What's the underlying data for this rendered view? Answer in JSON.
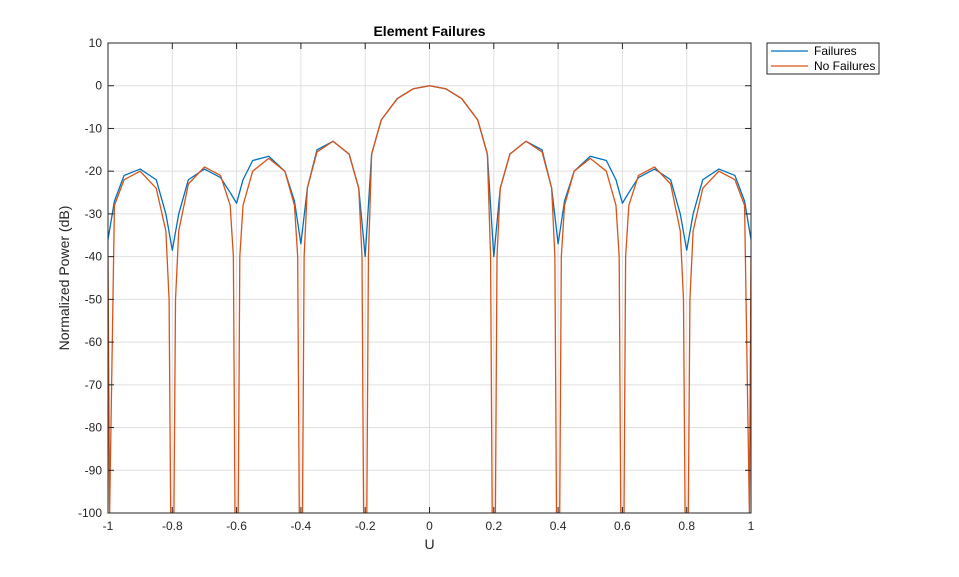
{
  "chart_data": {
    "type": "line",
    "title": "Element Failures",
    "xlabel": "U",
    "ylabel": "Normalized Power (dB)",
    "xlim": [
      -1,
      1
    ],
    "ylim": [
      -100,
      10
    ],
    "xticks": [
      -1,
      -0.8,
      -0.6,
      -0.4,
      -0.2,
      0,
      0.2,
      0.4,
      0.6,
      0.8,
      1
    ],
    "xtick_labels": [
      "-1",
      "-0.8",
      "-0.6",
      "-0.4",
      "-0.2",
      "0",
      "0.2",
      "0.4",
      "0.6",
      "0.8",
      "1"
    ],
    "yticks": [
      10,
      0,
      -10,
      -20,
      -30,
      -40,
      -50,
      -60,
      -70,
      -80,
      -90,
      -100
    ],
    "ytick_labels": [
      "10",
      "0",
      "-10",
      "-20",
      "-30",
      "-40",
      "-50",
      "-60",
      "-70",
      "-80",
      "-90",
      "-100"
    ],
    "grid": true,
    "legend_position": "outside-top-right",
    "series": [
      {
        "name": "Failures",
        "color": "#0072BD",
        "x": [
          -1,
          -0.98,
          -0.95,
          -0.9,
          -0.85,
          -0.82,
          -0.8,
          -0.78,
          -0.75,
          -0.7,
          -0.65,
          -0.62,
          -0.6,
          -0.58,
          -0.55,
          -0.5,
          -0.45,
          -0.42,
          -0.4,
          -0.38,
          -0.35,
          -0.3,
          -0.25,
          -0.22,
          -0.2,
          -0.18,
          -0.15,
          -0.1,
          -0.05,
          0,
          0.05,
          0.1,
          0.15,
          0.18,
          0.2,
          0.22,
          0.25,
          0.3,
          0.35,
          0.38,
          0.4,
          0.42,
          0.45,
          0.5,
          0.55,
          0.58,
          0.6,
          0.62,
          0.65,
          0.7,
          0.75,
          0.78,
          0.8,
          0.82,
          0.85,
          0.9,
          0.95,
          0.98,
          1
        ],
        "y": [
          -36,
          -27,
          -21,
          -19.5,
          -22,
          -30,
          -38.5,
          -30,
          -22,
          -19.5,
          -21.5,
          -25,
          -27.5,
          -22,
          -17.5,
          -16.5,
          -20,
          -27,
          -37,
          -24,
          -15,
          -13,
          -16,
          -24,
          -40,
          -16,
          -8,
          -3,
          -0.7,
          0,
          -0.7,
          -3,
          -8,
          -16,
          -40,
          -24,
          -16,
          -13,
          -15,
          -24,
          -37,
          -27,
          -20,
          -16.5,
          -17.5,
          -22,
          -27.5,
          -25,
          -21.5,
          -19.5,
          -22,
          -30,
          -38.5,
          -30,
          -22,
          -19.5,
          -21,
          -27,
          -36
        ]
      },
      {
        "name": "No Failures",
        "color": "#D95319",
        "x": [
          -1,
          -0.995,
          -0.98,
          -0.95,
          -0.9,
          -0.85,
          -0.82,
          -0.81,
          -0.805,
          -0.795,
          -0.79,
          -0.78,
          -0.75,
          -0.7,
          -0.65,
          -0.62,
          -0.61,
          -0.605,
          -0.595,
          -0.59,
          -0.58,
          -0.55,
          -0.5,
          -0.45,
          -0.42,
          -0.41,
          -0.405,
          -0.395,
          -0.39,
          -0.38,
          -0.35,
          -0.3,
          -0.25,
          -0.22,
          -0.21,
          -0.205,
          -0.195,
          -0.19,
          -0.18,
          -0.15,
          -0.1,
          -0.05,
          0,
          0.05,
          0.1,
          0.15,
          0.18,
          0.19,
          0.195,
          0.205,
          0.21,
          0.22,
          0.25,
          0.3,
          0.35,
          0.38,
          0.39,
          0.395,
          0.405,
          0.41,
          0.42,
          0.45,
          0.5,
          0.55,
          0.58,
          0.59,
          0.595,
          0.605,
          0.61,
          0.62,
          0.65,
          0.7,
          0.75,
          0.78,
          0.79,
          0.795,
          0.805,
          0.81,
          0.82,
          0.85,
          0.9,
          0.95,
          0.98,
          0.995,
          1
        ],
        "y": [
          -40,
          -100,
          -28,
          -22,
          -20,
          -24,
          -34,
          -50,
          -100,
          -100,
          -50,
          -34,
          -23,
          -19,
          -21,
          -28,
          -40,
          -100,
          -100,
          -40,
          -28,
          -20,
          -17,
          -20,
          -28,
          -40,
          -100,
          -100,
          -40,
          -24,
          -15.5,
          -13,
          -16,
          -24,
          -40,
          -100,
          -100,
          -40,
          -16,
          -8,
          -3,
          -0.7,
          0,
          -0.7,
          -3,
          -8,
          -16,
          -40,
          -100,
          -100,
          -40,
          -24,
          -16,
          -13,
          -15.5,
          -24,
          -40,
          -100,
          -100,
          -40,
          -28,
          -20,
          -17,
          -20,
          -28,
          -40,
          -100,
          -100,
          -40,
          -28,
          -21,
          -19,
          -23,
          -34,
          -50,
          -100,
          -100,
          -50,
          -34,
          -24,
          -20,
          -22,
          -28,
          -100,
          -40
        ]
      }
    ]
  }
}
